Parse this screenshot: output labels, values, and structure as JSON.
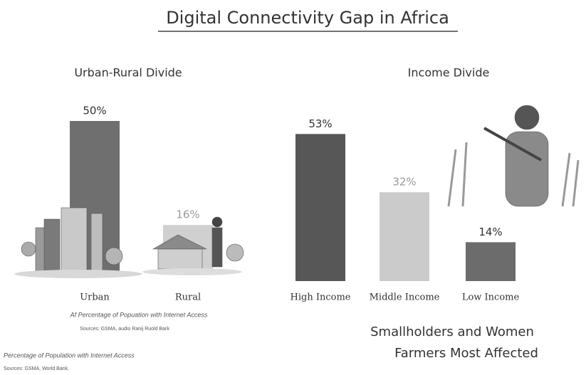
{
  "title": "Digital Connectivity Gap in Africa",
  "chart_data": [
    {
      "type": "bar",
      "title": "Urban-Rural Divide",
      "categories": [
        "Urban",
        "Rural"
      ],
      "values": [
        50,
        16
      ],
      "value_labels": [
        "50%",
        "16%"
      ],
      "colors": [
        "#6f6f6f",
        "#d0d0d0"
      ],
      "label_colors": [
        "#333333",
        "#9a9a9a"
      ],
      "note": "Af Percentage of Popuation with Internet Access",
      "source": "Sources: GSMA, audio Ranij Ruold Bark"
    },
    {
      "type": "bar",
      "title": "Income Divide",
      "categories": [
        "High Income",
        "Middle Income",
        "Low Income"
      ],
      "values": [
        53,
        32,
        14
      ],
      "value_labels": [
        "53%",
        "32%",
        "14%"
      ],
      "colors": [
        "#575757",
        "#cbcbcb",
        "#6c6c6c"
      ],
      "label_colors": [
        "#333333",
        "#9a9a9a",
        "#333333"
      ]
    }
  ],
  "footer": {
    "note": "Percentage of Population with Internet Access",
    "source": "Sources: GSMA, World Bank."
  },
  "caption": [
    "Smallholders and Women",
    "Farmers Most Affected"
  ]
}
